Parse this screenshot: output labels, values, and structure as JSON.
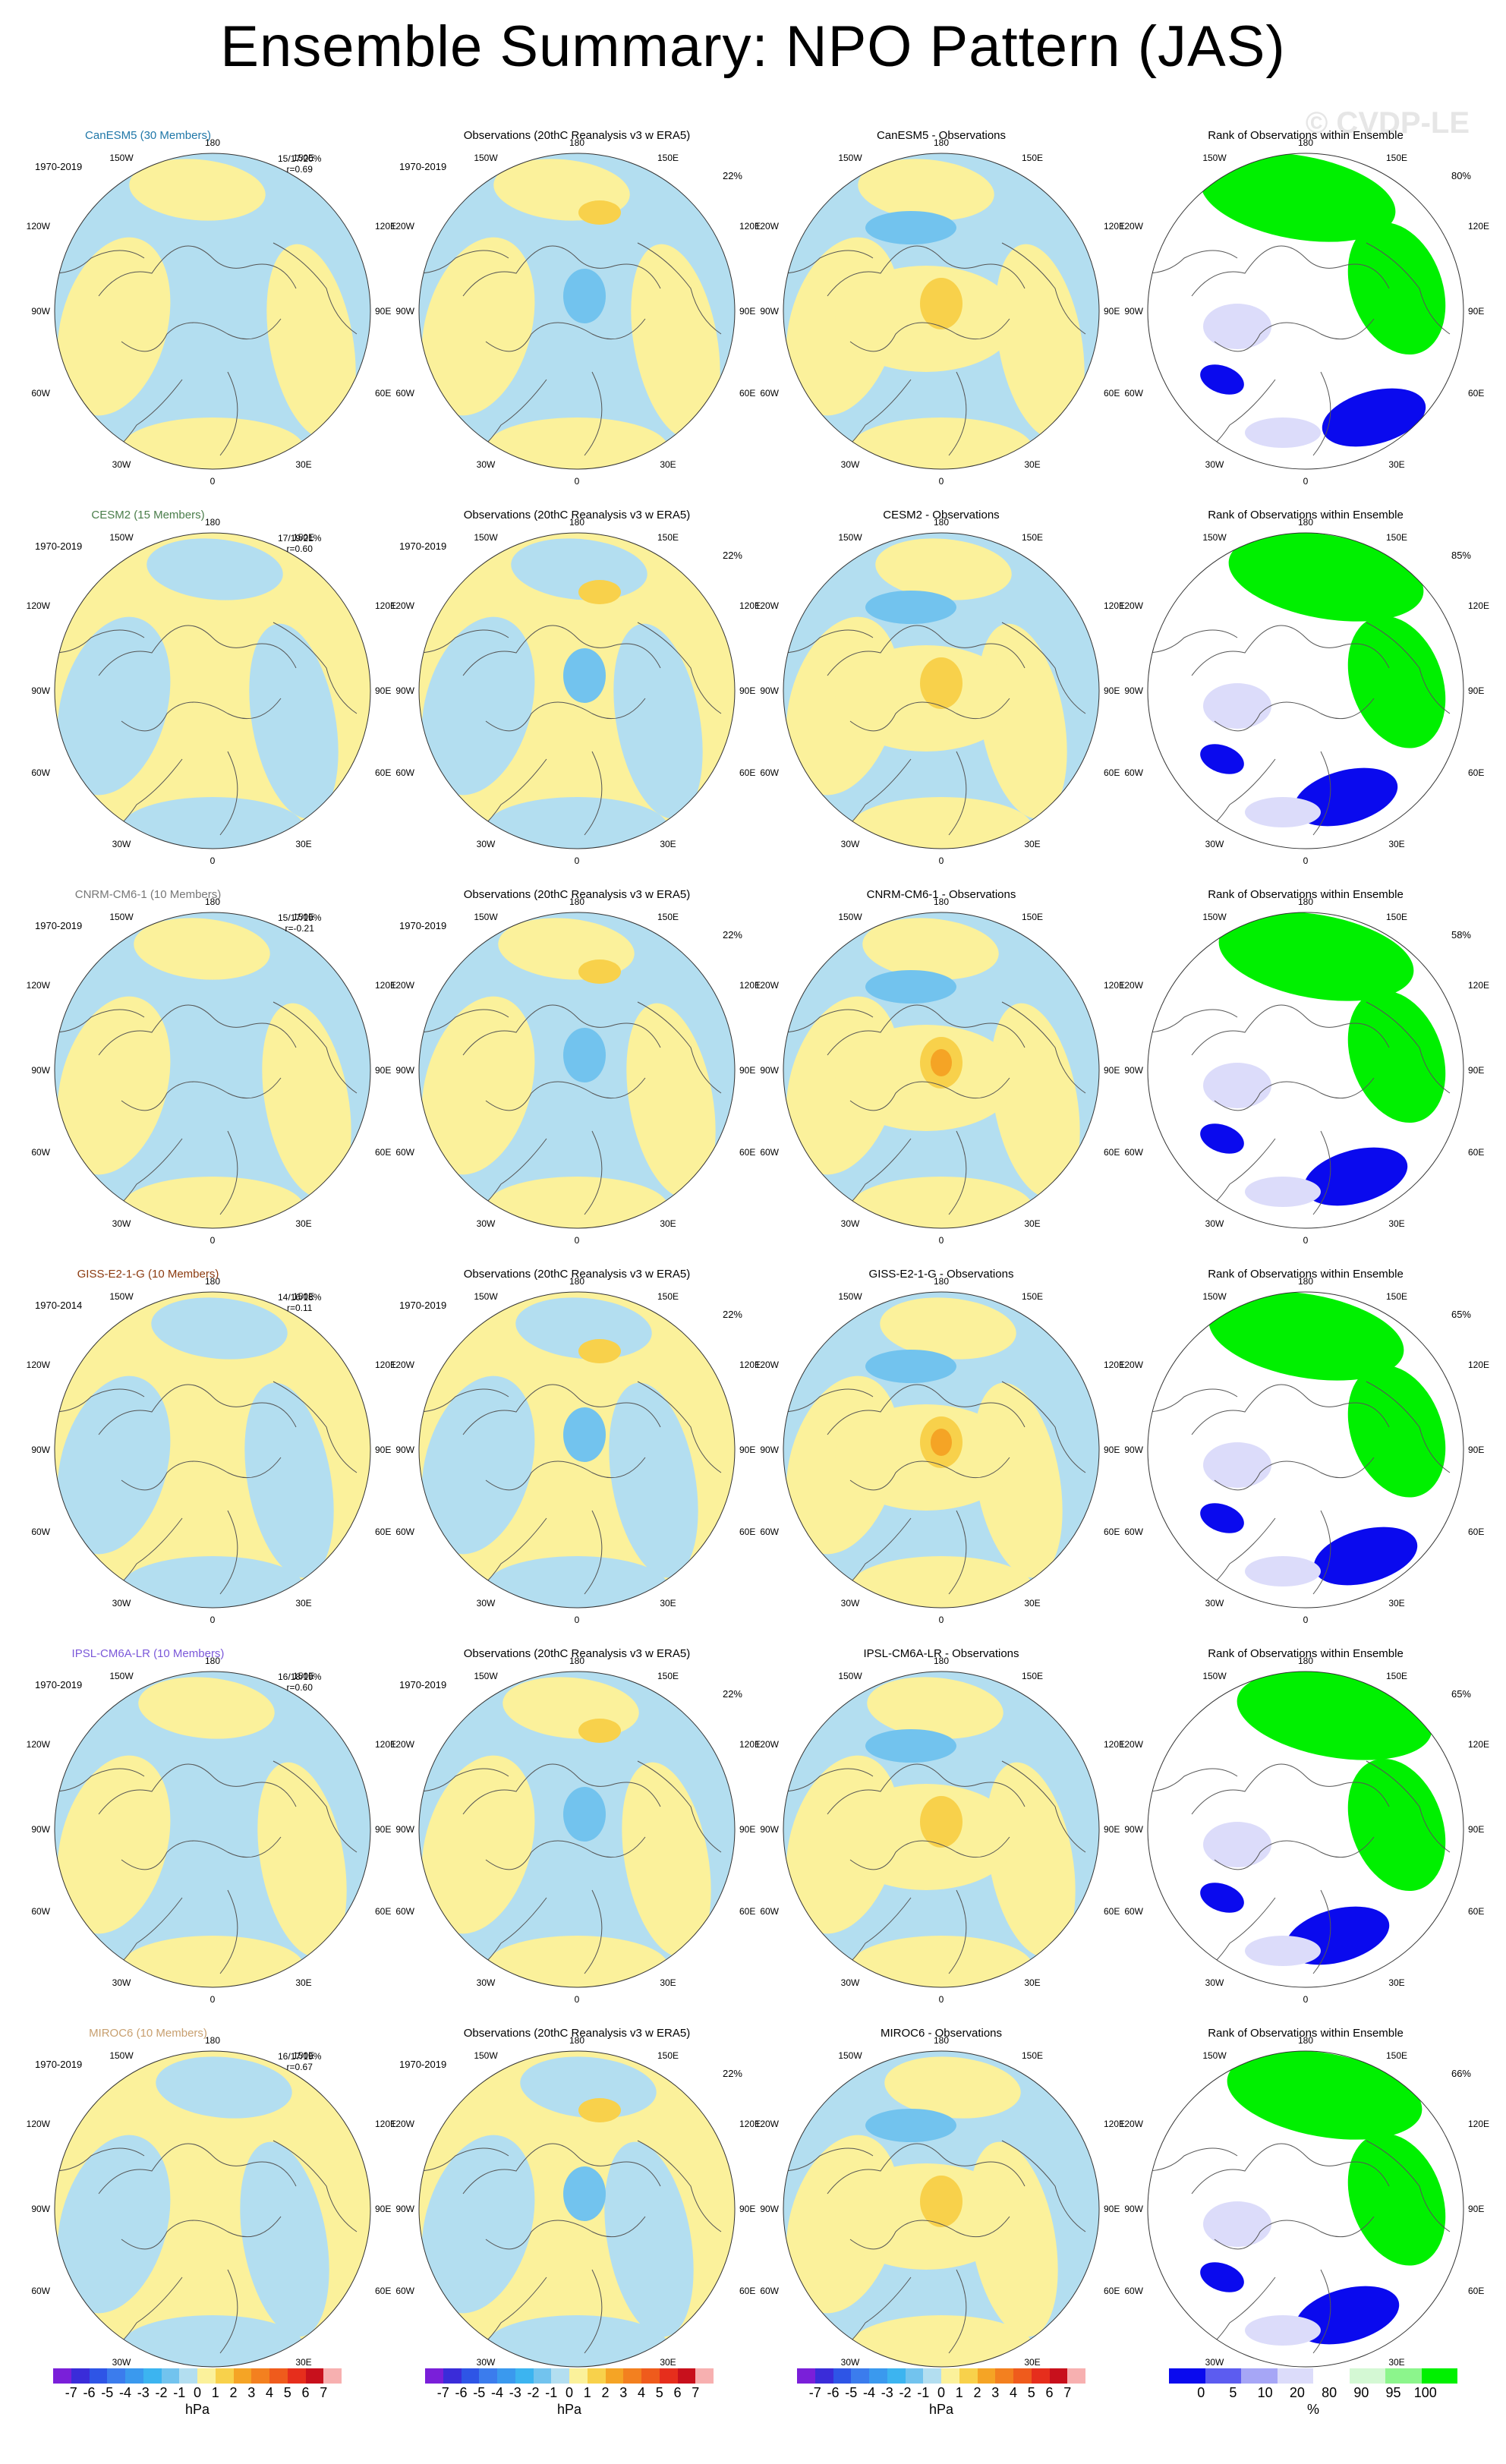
{
  "title": "Ensemble Summary: NPO Pattern (JAS)",
  "watermark": "© CVDP-LE",
  "colors": {
    "pos": "#fbf19b",
    "neg": "#b3def0",
    "neg2": "#72c3ee",
    "pos2": "#f8d14b",
    "pos3": "#f5a425",
    "land": "#555555",
    "rank_green": "#00f000",
    "rank_blue": "#0a0aee",
    "rank_lblue": "#dcdcfa",
    "rank_lgreen": "#d4f8d4"
  },
  "obs_title": "Observations (20thC Reanalysis v3 w ERA5)",
  "rank_title": "Rank of Observations within Ensemble",
  "obs_pct": "22%",
  "rows": [
    {
      "model": "CanESM5 (30 Members)",
      "model_color": "#1f77a8",
      "period": "1970-2019",
      "obs_period": "1970-2019",
      "stats1": "15/17/20%",
      "stats2": "r=0.69",
      "diff_title": "CanESM5 - Observations",
      "rank_pct": "80%"
    },
    {
      "model": "CESM2 (15 Members)",
      "model_color": "#4a7d4a",
      "period": "1970-2019",
      "obs_period": "1970-2019",
      "stats1": "17/19/21%",
      "stats2": "r=0.60",
      "diff_title": "CESM2 - Observations",
      "rank_pct": "85%"
    },
    {
      "model": "CNRM-CM6-1 (10 Members)",
      "model_color": "#777777",
      "period": "1970-2019",
      "obs_period": "1970-2019",
      "stats1": "15/17/19%",
      "stats2": "r=-0.21",
      "diff_title": "CNRM-CM6-1 - Observations",
      "rank_pct": "58%"
    },
    {
      "model": "GISS-E2-1-G (10 Members)",
      "model_color": "#8b3a0f",
      "period": "1970-2014",
      "obs_period": "1970-2019",
      "stats1": "14/16/18%",
      "stats2": "r=0.11",
      "diff_title": "GISS-E2-1-G - Observations",
      "rank_pct": "65%"
    },
    {
      "model": "IPSL-CM6A-LR (10 Members)",
      "model_color": "#7b58d9",
      "period": "1970-2019",
      "obs_period": "1970-2019",
      "stats1": "16/18/19%",
      "stats2": "r=0.60",
      "diff_title": "IPSL-CM6A-LR - Observations",
      "rank_pct": "65%"
    },
    {
      "model": "MIROC6 (10 Members)",
      "model_color": "#c8a070",
      "period": "1970-2019",
      "obs_period": "1970-2019",
      "stats1": "16/17/19%",
      "stats2": "r=0.67",
      "diff_title": "MIROC6 - Observations",
      "rank_pct": "66%"
    }
  ],
  "lon_labels": {
    "top": "180",
    "tl": "150W",
    "tr": "150E",
    "ul": "120W",
    "ur": "120E",
    "ml": "90W",
    "mr": "90E",
    "ll": "60W",
    "lr": "60E",
    "bl": "30W",
    "br": "30E",
    "bottom": "0"
  },
  "colorbar": {
    "labels": [
      "-7",
      "-6",
      "-5",
      "-4",
      "-3",
      "-2",
      "-1",
      "0",
      "1",
      "2",
      "3",
      "4",
      "5",
      "6",
      "7"
    ],
    "units": "hPa",
    "colors": [
      "#7a1fd9",
      "#3a2cd9",
      "#2e55e6",
      "#3b7ced",
      "#3a99ee",
      "#3cb4f0",
      "#72c3ee",
      "#b3def0",
      "#fbf19b",
      "#f8d14b",
      "#f5a425",
      "#f3801f",
      "#ef5b1c",
      "#e62e1c",
      "#c8101c",
      "#f7b0b0"
    ]
  },
  "rank_colorbar": {
    "labels": [
      "0",
      "5",
      "10",
      "20",
      "80",
      "90",
      "95",
      "100"
    ],
    "units": "%",
    "colors": [
      "#0a0aee",
      "#5c5cf0",
      "#a6a6f6",
      "#dcdcfa",
      "#ffffff",
      "#d4f8d4",
      "#8cf58c",
      "#00f000"
    ]
  }
}
